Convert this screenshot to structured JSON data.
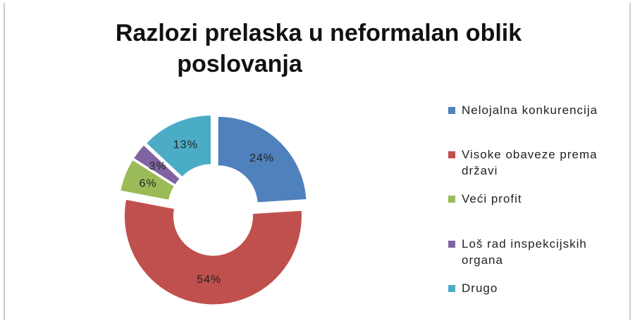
{
  "chart_data": {
    "type": "doughnut",
    "title": "Razlozi prelaska u neformalan oblik poslovanja",
    "categories": [
      "Nelojalna konkurencija",
      "Visoke obaveze prema državi",
      "Veći profit",
      "Loš rad inspekcijskih organa",
      "Drugo"
    ],
    "values": [
      24,
      54,
      6,
      3,
      13
    ],
    "value_labels": [
      "24%",
      "54%",
      "6%",
      "3%",
      "13%"
    ],
    "colors": [
      "#4f81bd",
      "#c0504d",
      "#9bbb59",
      "#8064a2",
      "#4bacc6"
    ],
    "legend": "right"
  }
}
